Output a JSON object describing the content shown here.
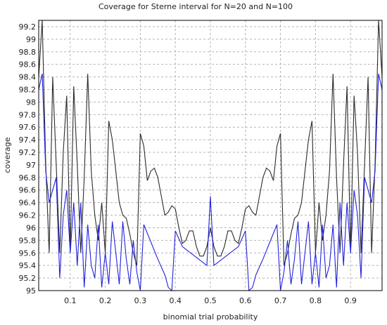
{
  "chart_data": {
    "type": "line",
    "title": "Coverage for Sterne interval for N=20 and N=100",
    "xlabel": "binomial trial probability",
    "ylabel": "coverage",
    "xlim": [
      0.01,
      0.99
    ],
    "ylim": [
      95,
      99.3
    ],
    "x_ticks": [
      "0.1",
      "0.2",
      "0.3",
      "0.4",
      "0.5",
      "0.6",
      "0.7",
      "0.8",
      "0.9"
    ],
    "y_ticks": [
      "95",
      "95.2",
      "95.4",
      "95.6",
      "95.8",
      "96",
      "96.2",
      "96.4",
      "96.6",
      "96.8",
      "97",
      "97.2",
      "97.4",
      "97.6",
      "97.8",
      "98",
      "98.2",
      "98.4",
      "98.6",
      "98.8",
      "99",
      "99.2"
    ],
    "grid": true,
    "legend": "none",
    "series": [
      {
        "color": "#2b2b2b",
        "x": [
          0.01,
          0.02,
          0.03,
          0.04,
          0.05,
          0.06,
          0.07,
          0.08,
          0.09,
          0.1,
          0.11,
          0.12,
          0.13,
          0.14,
          0.15,
          0.16,
          0.17,
          0.18,
          0.19,
          0.2,
          0.21,
          0.22,
          0.23,
          0.24,
          0.25,
          0.26,
          0.27,
          0.28,
          0.29,
          0.3,
          0.31,
          0.32,
          0.33,
          0.34,
          0.35,
          0.36,
          0.37,
          0.38,
          0.39,
          0.4,
          0.41,
          0.42,
          0.43,
          0.44,
          0.45,
          0.46,
          0.47,
          0.48,
          0.49,
          0.5,
          0.51,
          0.52,
          0.53,
          0.54,
          0.55,
          0.56,
          0.57,
          0.58,
          0.59,
          0.6,
          0.61,
          0.62,
          0.63,
          0.64,
          0.65,
          0.66,
          0.67,
          0.68,
          0.69,
          0.7,
          0.71,
          0.72,
          0.73,
          0.74,
          0.75,
          0.76,
          0.77,
          0.78,
          0.79,
          0.8,
          0.81,
          0.82,
          0.83,
          0.84,
          0.85,
          0.86,
          0.87,
          0.88,
          0.89,
          0.9,
          0.91,
          0.92,
          0.93,
          0.94,
          0.95,
          0.96,
          0.97,
          0.98,
          0.99
        ],
        "values": [
          98.4,
          99.3,
          97.0,
          95.6,
          98.4,
          97.0,
          95.6,
          97.2,
          98.1,
          95.6,
          98.25,
          97.0,
          95.6,
          96.8,
          98.45,
          96.9,
          96.2,
          95.8,
          96.4,
          95.6,
          97.7,
          97.4,
          96.9,
          96.4,
          96.2,
          96.15,
          95.9,
          95.6,
          95.4,
          97.5,
          97.3,
          96.75,
          96.9,
          96.95,
          96.8,
          96.5,
          96.2,
          96.25,
          96.35,
          96.3,
          96.0,
          95.75,
          95.8,
          95.95,
          95.95,
          95.7,
          95.55,
          95.55,
          95.7,
          96.0,
          95.7,
          95.55,
          95.55,
          95.7,
          95.95,
          95.95,
          95.8,
          95.75,
          96.0,
          96.3,
          96.35,
          96.25,
          96.2,
          96.5,
          96.8,
          96.95,
          96.9,
          96.75,
          97.3,
          97.5,
          95.4,
          95.6,
          95.9,
          96.15,
          96.2,
          96.4,
          96.9,
          97.4,
          97.7,
          95.6,
          96.4,
          95.8,
          96.2,
          96.9,
          98.45,
          96.8,
          95.6,
          97.0,
          98.25,
          95.6,
          98.1,
          97.2,
          95.6,
          97.0,
          98.4,
          95.6,
          97.0,
          99.3,
          98.4
        ]
      },
      {
        "color": "#2222dd",
        "x": [
          0.01,
          0.02,
          0.03,
          0.04,
          0.05,
          0.06,
          0.07,
          0.08,
          0.09,
          0.1,
          0.11,
          0.12,
          0.13,
          0.14,
          0.15,
          0.16,
          0.17,
          0.18,
          0.19,
          0.2,
          0.21,
          0.22,
          0.23,
          0.24,
          0.25,
          0.26,
          0.27,
          0.28,
          0.29,
          0.3,
          0.31,
          0.35,
          0.37,
          0.38,
          0.39,
          0.4,
          0.42,
          0.49,
          0.5,
          0.51,
          0.58,
          0.6,
          0.61,
          0.62,
          0.63,
          0.65,
          0.69,
          0.7,
          0.71,
          0.72,
          0.73,
          0.74,
          0.75,
          0.76,
          0.77,
          0.78,
          0.79,
          0.8,
          0.81,
          0.82,
          0.83,
          0.84,
          0.85,
          0.86,
          0.87,
          0.88,
          0.89,
          0.9,
          0.91,
          0.92,
          0.93,
          0.94,
          0.95,
          0.96,
          0.97,
          0.98,
          0.99
        ],
        "values": [
          98.2,
          98.45,
          96.9,
          96.4,
          96.6,
          96.8,
          95.2,
          96.2,
          96.6,
          95.6,
          96.4,
          95.4,
          96.4,
          95.05,
          96.05,
          95.4,
          95.2,
          96.05,
          95.05,
          95.6,
          95.1,
          96.1,
          95.6,
          95.1,
          96.1,
          95.5,
          95.1,
          95.8,
          95.3,
          95.0,
          96.05,
          95.5,
          95.25,
          95.05,
          95.0,
          95.95,
          95.7,
          95.4,
          96.5,
          95.4,
          95.7,
          95.95,
          95.0,
          95.05,
          95.25,
          95.5,
          96.05,
          95.0,
          95.3,
          95.8,
          95.1,
          95.5,
          96.1,
          95.1,
          95.6,
          96.1,
          95.1,
          95.6,
          95.05,
          96.05,
          95.2,
          95.4,
          96.05,
          95.05,
          96.4,
          95.4,
          96.4,
          95.6,
          96.6,
          96.2,
          95.2,
          96.8,
          96.6,
          96.4,
          96.9,
          98.45,
          98.2
        ]
      }
    ]
  }
}
